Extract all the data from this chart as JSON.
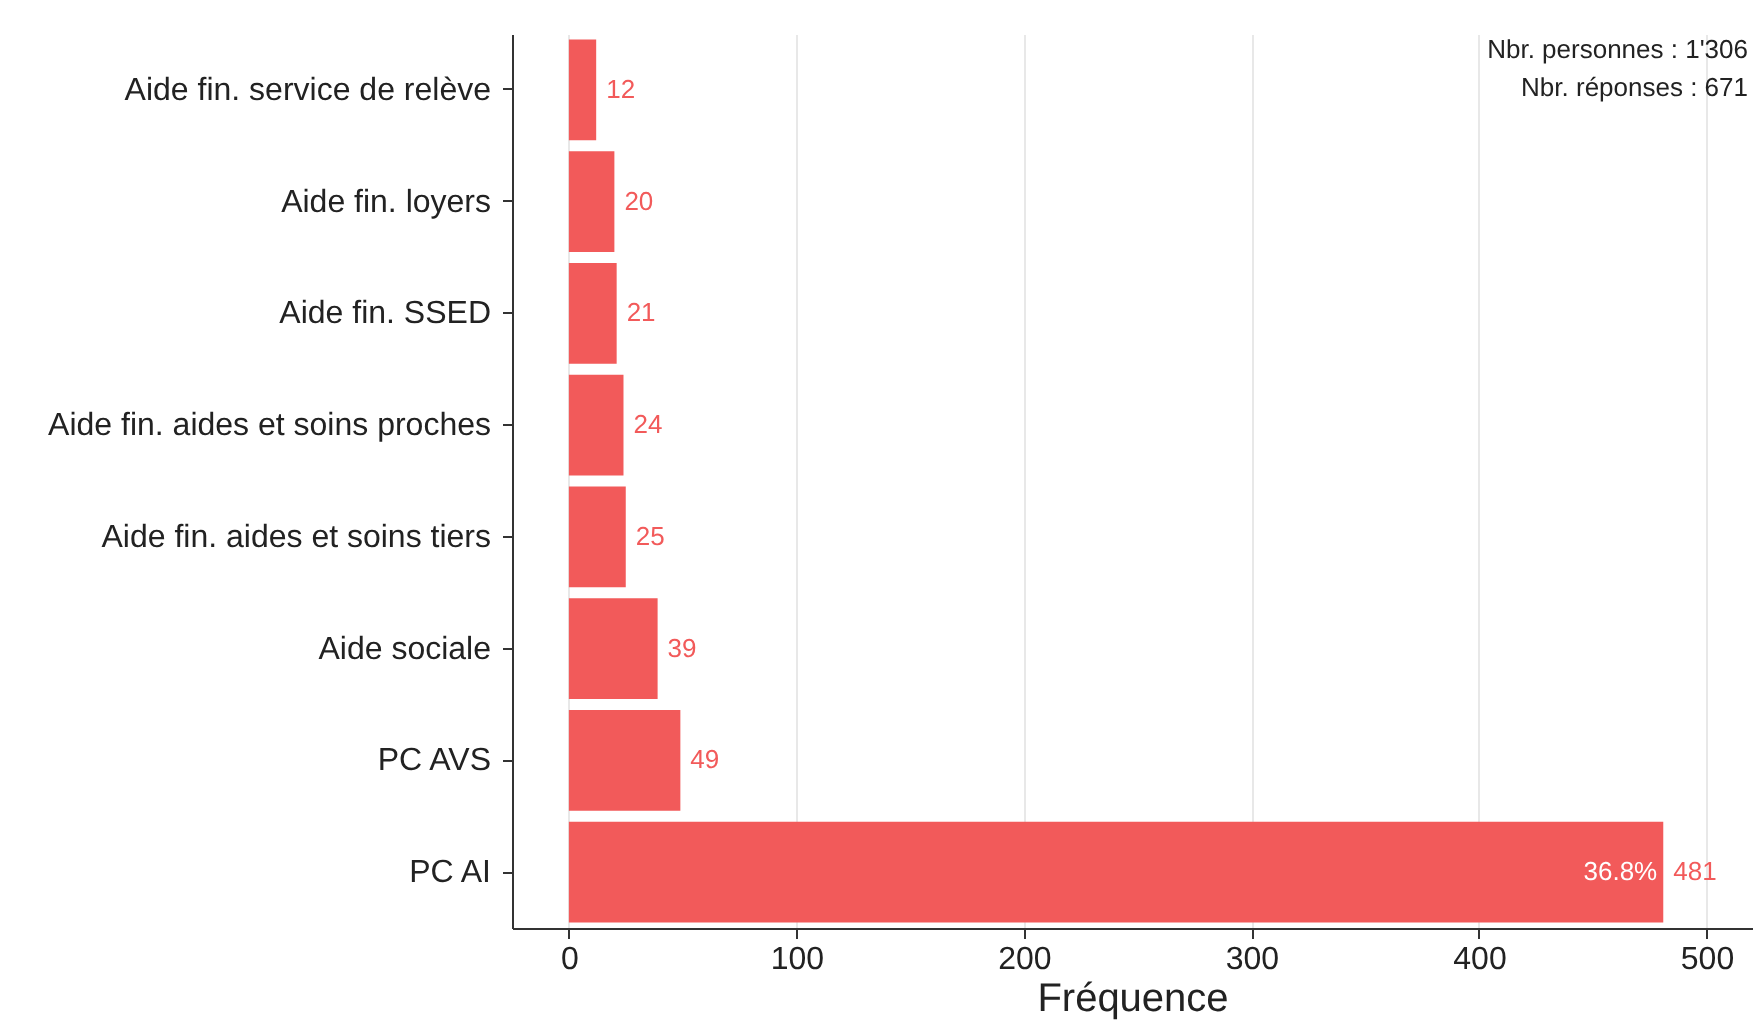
{
  "chart_data": {
    "type": "bar",
    "orientation": "horizontal",
    "xlabel": "Fréquence",
    "categories": [
      "Aide fin. service de relève",
      "Aide fin. loyers",
      "Aide fin. SSED",
      "Aide fin. aides et soins proches",
      "Aide fin. aides et soins tiers",
      "Aide sociale",
      "PC AVS",
      "PC AI"
    ],
    "values": [
      12,
      20,
      21,
      24,
      25,
      39,
      49,
      481
    ],
    "color": "#f25a5a",
    "xlim": [
      -25,
      520
    ],
    "xticks": [
      0,
      100,
      200,
      300,
      400,
      500
    ],
    "grid": "x",
    "data_labels": true,
    "annotations": [
      "Nbr. personnes : 1'306",
      "Nbr. réponses : 671",
      {
        "text": "36.8%",
        "x": 481,
        "y": "PC AI"
      }
    ]
  }
}
